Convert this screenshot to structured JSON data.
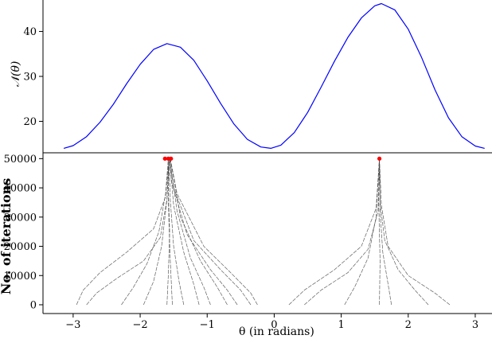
{
  "chart_data": [
    {
      "type": "line",
      "ylabel": "𝒩(θ)",
      "ylim": [
        13,
        47
      ],
      "xlim": [
        -3.45,
        3.25
      ],
      "yticks": [
        20,
        30,
        40
      ],
      "ytick_labels": [
        "20",
        "30",
        "40"
      ],
      "color": "#0000ff",
      "series": [
        {
          "x": [
            -3.14,
            -3.0,
            -2.8,
            -2.6,
            -2.4,
            -2.2,
            -2.0,
            -1.8,
            -1.6,
            -1.4,
            -1.2,
            -1.0,
            -0.8,
            -0.6,
            -0.4,
            -0.2,
            -0.05,
            0.1,
            0.3,
            0.5,
            0.7,
            0.9,
            1.1,
            1.3,
            1.5,
            1.6,
            1.8,
            2.0,
            2.2,
            2.4,
            2.6,
            2.8,
            3.0,
            3.14
          ],
          "y": [
            14.0,
            14.6,
            16.6,
            19.8,
            23.8,
            28.4,
            32.7,
            36.0,
            37.3,
            36.5,
            33.6,
            29.0,
            24.0,
            19.4,
            16.0,
            14.3,
            14.0,
            14.7,
            17.5,
            22.0,
            27.6,
            33.4,
            38.7,
            43.0,
            45.7,
            46.2,
            44.8,
            40.5,
            34.2,
            27.0,
            20.8,
            16.6,
            14.5,
            14.0
          ]
        }
      ]
    },
    {
      "type": "line",
      "xlabel": "θ (in radians)",
      "ylabel": "No. of iterations",
      "xlim": [
        -3.45,
        3.25
      ],
      "ylim": [
        -3000,
        52000
      ],
      "xticks": [
        -3,
        -2,
        -1,
        0,
        1,
        2,
        3
      ],
      "xtick_labels": [
        "−3",
        "−2",
        "−1",
        "0",
        "1",
        "2",
        "3"
      ],
      "yticks": [
        0,
        10000,
        20000,
        30000,
        40000,
        50000
      ],
      "ytick_labels": [
        "0",
        "10000",
        "20000",
        "30000",
        "40000",
        "50000"
      ],
      "color": "#444444",
      "endpoint_color": "#ff0000",
      "series": [
        {
          "x": [
            -2.95,
            -2.85,
            -2.6,
            -2.2,
            -1.8,
            -1.62,
            -1.57
          ],
          "y": [
            0,
            5000,
            11000,
            18000,
            26000,
            37000,
            50000
          ]
        },
        {
          "x": [
            -2.8,
            -2.65,
            -2.35,
            -1.95,
            -1.7,
            -1.6,
            -1.57
          ],
          "y": [
            0,
            4000,
            9000,
            15000,
            23000,
            36000,
            50000
          ]
        },
        {
          "x": [
            -2.28,
            -2.1,
            -1.9,
            -1.72,
            -1.62,
            -1.58
          ],
          "y": [
            0,
            6000,
            14000,
            25000,
            38000,
            50000
          ]
        },
        {
          "x": [
            -1.95,
            -1.8,
            -1.68,
            -1.6,
            -1.57
          ],
          "y": [
            0,
            8000,
            20000,
            36000,
            50000
          ]
        },
        {
          "x": [
            -1.35,
            -1.42,
            -1.5,
            -1.55,
            -1.57
          ],
          "y": [
            0,
            8000,
            20000,
            36000,
            50000
          ]
        },
        {
          "x": [
            -1.12,
            -1.2,
            -1.35,
            -1.5,
            -1.56
          ],
          "y": [
            0,
            7000,
            18000,
            34000,
            50000
          ]
        },
        {
          "x": [
            -0.95,
            -1.05,
            -1.25,
            -1.45,
            -1.56
          ],
          "y": [
            0,
            6000,
            16000,
            32000,
            50000
          ]
        },
        {
          "x": [
            -0.7,
            -0.85,
            -1.1,
            -1.4,
            -1.55
          ],
          "y": [
            0,
            6000,
            15000,
            30000,
            50000
          ]
        },
        {
          "x": [
            -0.55,
            -0.7,
            -0.95,
            -1.3,
            -1.53,
            -1.56
          ],
          "y": [
            0,
            5000,
            12000,
            24000,
            42000,
            50000
          ]
        },
        {
          "x": [
            -0.35,
            -0.5,
            -0.8,
            -1.2,
            -1.5,
            -1.56
          ],
          "y": [
            0,
            5000,
            12000,
            22000,
            40000,
            50000
          ]
        },
        {
          "x": [
            -0.25,
            -0.35,
            -0.65,
            -1.05,
            -1.45,
            -1.55
          ],
          "y": [
            0,
            4000,
            11000,
            20000,
            38000,
            50000
          ]
        },
        {
          "x": [
            -1.6,
            -1.58,
            -1.56,
            -1.58,
            -1.57
          ],
          "y": [
            0,
            10000,
            25000,
            40000,
            50000
          ]
        },
        {
          "x": [
            -1.52,
            -1.55,
            -1.58,
            -1.57
          ],
          "y": [
            0,
            15000,
            35000,
            50000
          ]
        },
        {
          "x": [
            0.22,
            0.45,
            0.9,
            1.3,
            1.52,
            1.57
          ],
          "y": [
            0,
            5000,
            12000,
            20000,
            33000,
            50000
          ]
        },
        {
          "x": [
            0.45,
            0.7,
            1.1,
            1.4,
            1.55,
            1.57
          ],
          "y": [
            0,
            5000,
            11000,
            19000,
            32000,
            50000
          ]
        },
        {
          "x": [
            1.05,
            1.2,
            1.4,
            1.52,
            1.57
          ],
          "y": [
            0,
            6000,
            16000,
            30000,
            50000
          ]
        },
        {
          "x": [
            1.75,
            1.7,
            1.62,
            1.58,
            1.57
          ],
          "y": [
            0,
            7000,
            18000,
            32000,
            50000
          ]
        },
        {
          "x": [
            2.3,
            2.1,
            1.85,
            1.65,
            1.58,
            1.57
          ],
          "y": [
            0,
            5000,
            12000,
            22000,
            35000,
            50000
          ]
        },
        {
          "x": [
            2.62,
            2.4,
            2.0,
            1.7,
            1.6,
            1.57
          ],
          "y": [
            0,
            4000,
            10000,
            20000,
            34000,
            50000
          ]
        },
        {
          "x": [
            1.57,
            1.58,
            1.56,
            1.57
          ],
          "y": [
            0,
            15000,
            35000,
            50000
          ]
        }
      ],
      "endpoints": [
        {
          "x": -1.63,
          "y": 50000
        },
        {
          "x": -1.58,
          "y": 50000
        },
        {
          "x": -1.54,
          "y": 50000
        },
        {
          "x": 1.57,
          "y": 50000
        }
      ]
    }
  ]
}
